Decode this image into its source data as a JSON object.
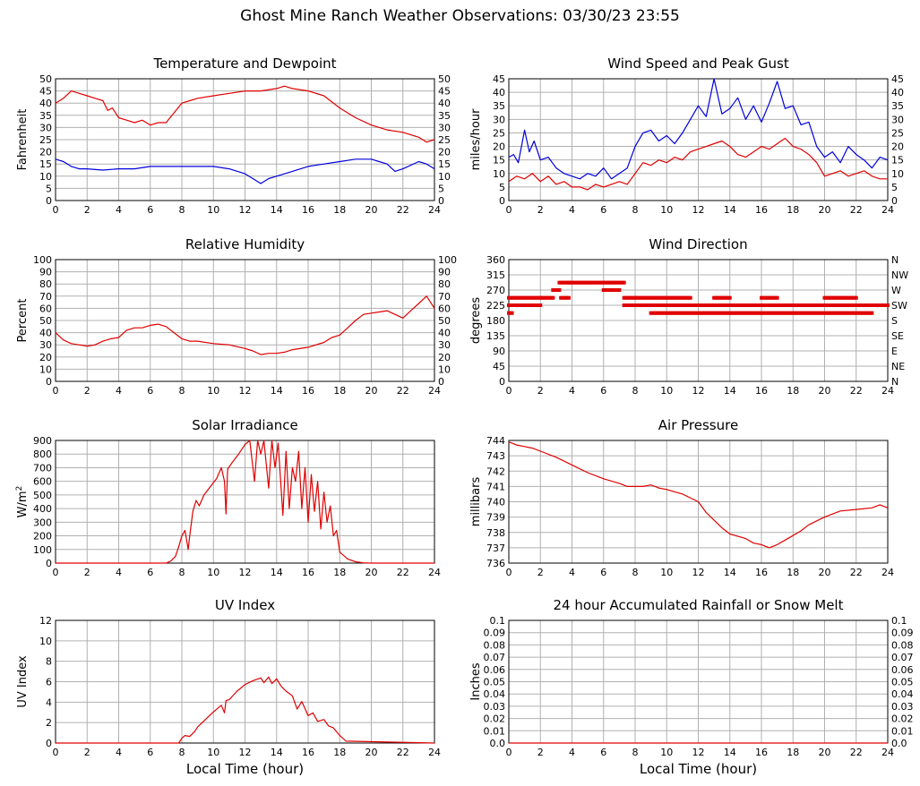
{
  "page_title": "Ghost Mine Ranch Weather Observations: 03/30/23 23:55",
  "x_axis_label": "Local Time (hour)",
  "colors": {
    "red": "#e00000",
    "blue": "#0000dd",
    "grid": "#b0b0b0"
  },
  "chart_data": [
    {
      "id": "temp",
      "type": "line",
      "title": "Temperature and Dewpoint",
      "ylabel": "Fahrenheit",
      "xlim": [
        0,
        24
      ],
      "ylim": [
        0,
        50
      ],
      "x_ticks": [
        0,
        2,
        4,
        6,
        8,
        10,
        12,
        14,
        16,
        18,
        20,
        22,
        24
      ],
      "y_ticks": [
        "0",
        "5",
        "10",
        "15",
        "20",
        "25",
        "30",
        "35",
        "40",
        "45",
        "50"
      ],
      "right_ticks": [
        "0",
        "5",
        "10",
        "15",
        "20",
        "25",
        "30",
        "35",
        "40",
        "45",
        "50"
      ],
      "grid": true,
      "series": [
        {
          "color": "red",
          "x": [
            0,
            0.5,
            1,
            1.5,
            2,
            2.5,
            3,
            3.3,
            3.6,
            4,
            4.5,
            5,
            5.5,
            6,
            6.5,
            7,
            7.5,
            8,
            8.5,
            9,
            10,
            11,
            12,
            13,
            14,
            14.5,
            15,
            16,
            17,
            18,
            18.5,
            19,
            20,
            21,
            22,
            23,
            23.5,
            24
          ],
          "y": [
            40,
            42,
            45,
            44,
            43,
            42,
            41,
            37,
            38,
            34,
            33,
            32,
            33,
            31,
            32,
            32,
            36,
            40,
            41,
            42,
            43,
            44,
            45,
            45,
            46,
            47,
            46,
            45,
            43,
            38,
            36,
            34,
            31,
            29,
            28,
            26,
            24,
            25
          ]
        },
        {
          "color": "blue",
          "x": [
            0,
            0.5,
            1,
            1.5,
            2,
            3,
            4,
            5,
            6,
            7,
            8,
            9,
            10,
            11,
            12,
            12.5,
            13,
            13.5,
            14,
            15,
            16,
            17,
            18,
            19,
            20,
            20.5,
            21,
            21.5,
            22,
            23,
            23.5,
            24
          ],
          "y": [
            17,
            16,
            14,
            13,
            13,
            12.5,
            13,
            13,
            14,
            14,
            14,
            14,
            14,
            13,
            11,
            9,
            7,
            9,
            10,
            12,
            14,
            15,
            16,
            17,
            17,
            16,
            15,
            12,
            13,
            16,
            15,
            13
          ]
        }
      ]
    },
    {
      "id": "wind",
      "type": "line",
      "title": "Wind Speed and Peak Gust",
      "ylabel": "miles/hour",
      "xlim": [
        0,
        24
      ],
      "ylim": [
        0,
        45
      ],
      "x_ticks": [
        0,
        2,
        4,
        6,
        8,
        10,
        12,
        14,
        16,
        18,
        20,
        22,
        24
      ],
      "y_ticks": [
        "0",
        "5",
        "10",
        "15",
        "20",
        "25",
        "30",
        "35",
        "40",
        "45"
      ],
      "right_ticks": [
        "0",
        "5",
        "10",
        "15",
        "20",
        "25",
        "30",
        "35",
        "40",
        "45"
      ],
      "grid": true,
      "series": [
        {
          "color": "blue",
          "x": [
            0,
            0.3,
            0.6,
            1,
            1.3,
            1.6,
            2,
            2.5,
            3,
            3.5,
            4,
            4.5,
            5,
            5.5,
            6,
            6.5,
            7,
            7.5,
            8,
            8.5,
            9,
            9.5,
            10,
            10.5,
            11,
            11.5,
            12,
            12.5,
            13,
            13.5,
            14,
            14.5,
            15,
            15.5,
            16,
            16.5,
            17,
            17.5,
            18,
            18.5,
            19,
            19.5,
            20,
            20.5,
            21,
            21.5,
            22,
            22.5,
            23,
            23.5,
            24
          ],
          "y": [
            16,
            17,
            14,
            26,
            18,
            22,
            15,
            16,
            12,
            10,
            9,
            8,
            10,
            9,
            12,
            8,
            10,
            12,
            20,
            25,
            26,
            22,
            24,
            21,
            25,
            30,
            35,
            31,
            45,
            32,
            34,
            38,
            30,
            35,
            29,
            36,
            44,
            34,
            35,
            28,
            29,
            20,
            16,
            18,
            14,
            20,
            17,
            15,
            12,
            16,
            15
          ]
        },
        {
          "color": "red",
          "x": [
            0,
            0.5,
            1,
            1.5,
            2,
            2.5,
            3,
            3.5,
            4,
            4.5,
            5,
            5.5,
            6,
            6.5,
            7,
            7.5,
            8,
            8.5,
            9,
            9.5,
            10,
            10.5,
            11,
            11.5,
            12,
            12.5,
            13,
            13.5,
            14,
            14.5,
            15,
            15.5,
            16,
            16.5,
            17,
            17.5,
            18,
            18.5,
            19,
            19.5,
            20,
            20.5,
            21,
            21.5,
            22,
            22.5,
            23,
            23.5,
            24
          ],
          "y": [
            7,
            9,
            8,
            10,
            7,
            9,
            6,
            7,
            5,
            5,
            4,
            6,
            5,
            6,
            7,
            6,
            10,
            14,
            13,
            15,
            14,
            16,
            15,
            18,
            19,
            20,
            21,
            22,
            20,
            17,
            16,
            18,
            20,
            19,
            21,
            23,
            20,
            19,
            17,
            14,
            9,
            10,
            11,
            9,
            10,
            11,
            9,
            8,
            8
          ]
        }
      ]
    },
    {
      "id": "rh",
      "type": "line",
      "title": "Relative Humidity",
      "ylabel": "Percent",
      "xlim": [
        0,
        24
      ],
      "ylim": [
        0,
        100
      ],
      "x_ticks": [
        0,
        2,
        4,
        6,
        8,
        10,
        12,
        14,
        16,
        18,
        20,
        22,
        24
      ],
      "y_ticks": [
        "0",
        "10",
        "20",
        "30",
        "40",
        "50",
        "60",
        "70",
        "80",
        "90",
        "100"
      ],
      "right_ticks": [
        "0",
        "10",
        "20",
        "30",
        "40",
        "50",
        "60",
        "70",
        "80",
        "90",
        "100"
      ],
      "grid": true,
      "series": [
        {
          "color": "red",
          "x": [
            0,
            0.5,
            1,
            1.5,
            2,
            2.5,
            3,
            3.5,
            4,
            4.5,
            5,
            5.5,
            6,
            6.5,
            7,
            7.5,
            8,
            8.5,
            9,
            10,
            11,
            12,
            12.5,
            13,
            13.5,
            14,
            14.5,
            15,
            16,
            17,
            17.5,
            18,
            18.5,
            19,
            19.5,
            20,
            20.5,
            21,
            21.5,
            22,
            22.5,
            23,
            23.5,
            24
          ],
          "y": [
            40,
            34,
            31,
            30,
            29,
            30,
            33,
            35,
            36,
            42,
            44,
            44,
            46,
            47,
            45,
            40,
            35,
            33,
            33,
            31,
            30,
            27,
            25,
            22,
            23,
            23,
            24,
            26,
            28,
            32,
            36,
            38,
            44,
            50,
            55,
            56,
            57,
            58,
            55,
            52,
            58,
            64,
            70,
            60
          ]
        }
      ]
    },
    {
      "id": "wdir",
      "type": "scatter",
      "title": "Wind Direction",
      "ylabel": "degrees",
      "xlim": [
        0,
        24
      ],
      "ylim": [
        0,
        360
      ],
      "x_ticks": [
        0,
        2,
        4,
        6,
        8,
        10,
        12,
        14,
        16,
        18,
        20,
        22,
        24
      ],
      "y_ticks": [
        "0",
        "45",
        "90",
        "135",
        "180",
        "225",
        "270",
        "315",
        "360"
      ],
      "right_ticks": [
        "N",
        "NE",
        "E",
        "SE",
        "S",
        "SW",
        "W",
        "NW",
        "N"
      ],
      "grid": true,
      "series": [
        {
          "color": "red",
          "marker": "dot",
          "segments": [
            {
              "from": 0.0,
              "to": 0.2,
              "y": 202
            },
            {
              "from": 0.0,
              "to": 2.0,
              "y": 225
            },
            {
              "from": 0.0,
              "to": 2.8,
              "y": 247
            },
            {
              "from": 2.8,
              "to": 3.2,
              "y": 270
            },
            {
              "from": 3.2,
              "to": 3.8,
              "y": 292
            },
            {
              "from": 3.3,
              "to": 3.8,
              "y": 247
            },
            {
              "from": 3.8,
              "to": 7.3,
              "y": 292
            },
            {
              "from": 6.0,
              "to": 7.0,
              "y": 270
            },
            {
              "from": 7.3,
              "to": 24.0,
              "y": 225
            },
            {
              "from": 7.3,
              "to": 11.5,
              "y": 247
            },
            {
              "from": 9.0,
              "to": 23.0,
              "y": 202
            },
            {
              "from": 13.0,
              "to": 14.0,
              "y": 247
            },
            {
              "from": 16.0,
              "to": 17.0,
              "y": 247
            },
            {
              "from": 20.0,
              "to": 22.0,
              "y": 247
            }
          ]
        }
      ]
    },
    {
      "id": "solar",
      "type": "line",
      "title": "Solar Irradiance",
      "ylabel": "W/m",
      "ylabel_sup": "2",
      "xlim": [
        0,
        24
      ],
      "ylim": [
        0,
        900
      ],
      "x_ticks": [
        0,
        2,
        4,
        6,
        8,
        10,
        12,
        14,
        16,
        18,
        20,
        22,
        24
      ],
      "y_ticks": [
        "0",
        "100",
        "200",
        "300",
        "400",
        "500",
        "600",
        "700",
        "800",
        "900"
      ],
      "right_ticks": [],
      "grid": true,
      "series": [
        {
          "color": "red",
          "x": [
            0,
            7,
            7.3,
            7.6,
            7.8,
            8,
            8.2,
            8.4,
            8.5,
            8.7,
            8.9,
            9.1,
            9.4,
            9.8,
            10.2,
            10.5,
            10.7,
            10.8,
            10.9,
            11.2,
            11.6,
            12,
            12.3,
            12.6,
            12.8,
            13,
            13.2,
            13.5,
            13.7,
            13.9,
            14.1,
            14.4,
            14.6,
            14.8,
            15,
            15.2,
            15.4,
            15.6,
            15.8,
            16,
            16.2,
            16.4,
            16.6,
            16.8,
            17,
            17.2,
            17.4,
            17.6,
            17.8,
            18,
            18.5,
            19,
            19.5,
            20,
            24
          ],
          "y": [
            0,
            0,
            15,
            50,
            120,
            200,
            240,
            100,
            200,
            380,
            460,
            420,
            500,
            560,
            620,
            700,
            600,
            360,
            690,
            740,
            800,
            870,
            900,
            600,
            900,
            800,
            900,
            550,
            900,
            700,
            880,
            350,
            820,
            400,
            700,
            600,
            820,
            400,
            700,
            300,
            650,
            380,
            600,
            250,
            520,
            300,
            420,
            200,
            240,
            80,
            30,
            10,
            2,
            0,
            0
          ]
        }
      ]
    },
    {
      "id": "pressure",
      "type": "line",
      "title": "Air Pressure",
      "ylabel": "millibars",
      "xlim": [
        0,
        24
      ],
      "ylim": [
        736,
        744
      ],
      "x_ticks": [
        0,
        2,
        4,
        6,
        8,
        10,
        12,
        14,
        16,
        18,
        20,
        22,
        24
      ],
      "y_ticks": [
        "736",
        "737",
        "738",
        "739",
        "740",
        "741",
        "742",
        "743",
        "744"
      ],
      "right_ticks": [],
      "grid": true,
      "series": [
        {
          "color": "red",
          "x": [
            0,
            0.5,
            1,
            1.5,
            2,
            3,
            4,
            5,
            6,
            7,
            7.5,
            8,
            8.5,
            9,
            9.5,
            10,
            11,
            12,
            12.5,
            13,
            13.5,
            14,
            15,
            15.5,
            16,
            16.5,
            17,
            17.5,
            18,
            18.5,
            19,
            20,
            21,
            22,
            23,
            23.5,
            24
          ],
          "y": [
            743.9,
            743.7,
            743.6,
            743.5,
            743.3,
            742.9,
            742.4,
            741.9,
            741.5,
            741.2,
            741.0,
            741.0,
            741.0,
            741.1,
            740.9,
            740.8,
            740.5,
            740.0,
            739.3,
            738.8,
            738.3,
            737.9,
            737.6,
            737.3,
            737.2,
            737.0,
            737.2,
            737.5,
            737.8,
            738.1,
            738.5,
            739.0,
            739.4,
            739.5,
            739.6,
            739.8,
            739.6
          ]
        }
      ]
    },
    {
      "id": "uv",
      "type": "line",
      "title": "UV Index",
      "ylabel": "UV Index",
      "xlim": [
        0,
        24
      ],
      "ylim": [
        0,
        13
      ],
      "x_ticks": [
        0,
        2,
        4,
        6,
        8,
        10,
        12,
        14,
        16,
        18,
        20,
        22,
        24
      ],
      "y_ticks": [
        "0",
        "2",
        "4",
        "6",
        "8",
        "10",
        "12"
      ],
      "right_ticks": [],
      "show_xlabel": true,
      "grid": true,
      "series": [
        {
          "color": "red",
          "x": [
            0,
            7.8,
            8,
            8.2,
            8.5,
            8.8,
            9,
            9.5,
            10,
            10.5,
            10.7,
            10.8,
            11,
            11.5,
            12,
            12.5,
            13,
            13.2,
            13.5,
            13.7,
            14,
            14.3,
            14.6,
            15,
            15.3,
            15.6,
            16,
            16.3,
            16.6,
            17,
            17.3,
            17.6,
            18,
            18.4,
            24
          ],
          "y": [
            0,
            0,
            0.5,
            0.8,
            0.7,
            1.2,
            1.7,
            2.5,
            3.3,
            4.0,
            3.2,
            4.5,
            4.6,
            5.5,
            6.2,
            6.6,
            6.9,
            6.4,
            7.0,
            6.3,
            6.8,
            6.0,
            5.5,
            5.0,
            3.6,
            4.4,
            2.9,
            3.2,
            2.3,
            2.5,
            1.8,
            1.6,
            0.8,
            0.2,
            0
          ]
        }
      ]
    },
    {
      "id": "rain",
      "type": "line",
      "title": "24 hour Accumulated Rainfall or Snow Melt",
      "ylabel": "Inches",
      "xlim": [
        0,
        24
      ],
      "ylim": [
        0,
        0.1
      ],
      "x_ticks": [
        0,
        2,
        4,
        6,
        8,
        10,
        12,
        14,
        16,
        18,
        20,
        22,
        24
      ],
      "y_ticks": [
        "0.0",
        "0.01",
        "0.02",
        "0.03",
        "0.04",
        "0.05",
        "0.06",
        "0.07",
        "0.08",
        "0.09",
        "0.1"
      ],
      "right_ticks": [
        "0.0",
        "0.01",
        "0.02",
        "0.03",
        "0.04",
        "0.05",
        "0.06",
        "0.07",
        "0.08",
        "0.09",
        "0.1"
      ],
      "show_xlabel": true,
      "grid": true,
      "series": [
        {
          "color": "red",
          "x": [
            0,
            24
          ],
          "y": [
            0,
            0
          ]
        }
      ]
    }
  ]
}
